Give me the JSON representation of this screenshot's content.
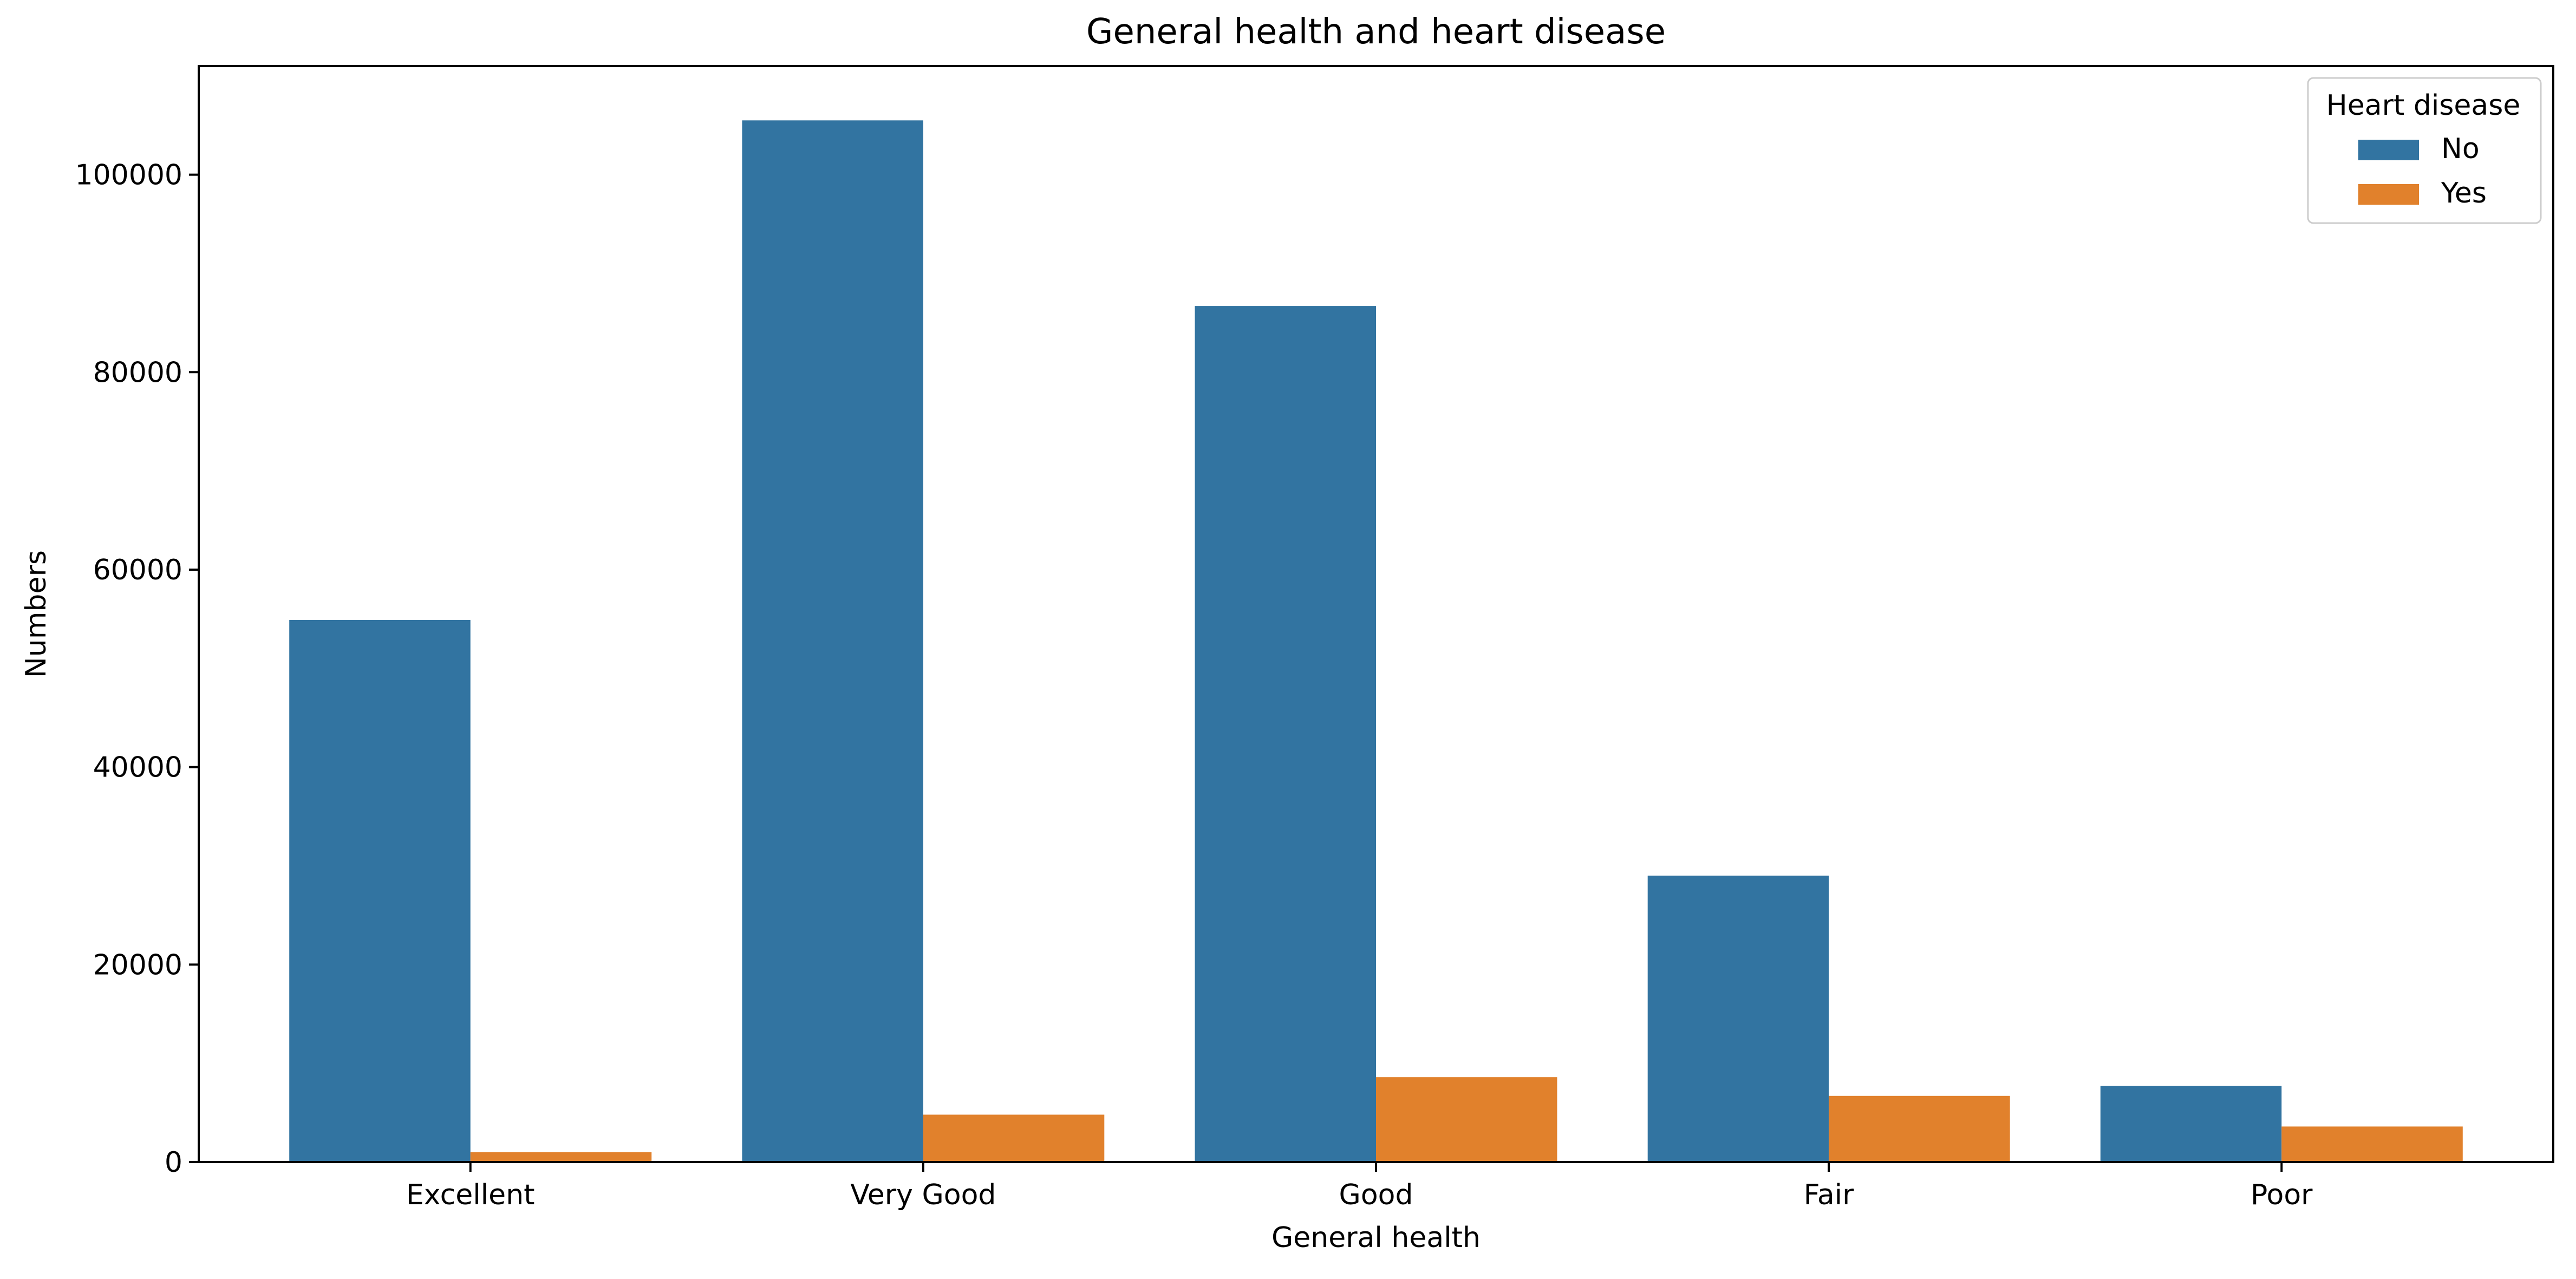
{
  "chart_data": {
    "type": "bar",
    "title": "General health and heart disease",
    "xlabel": "General health",
    "ylabel": "Numbers",
    "categories": [
      "Excellent",
      "Very Good",
      "Good",
      "Fair",
      "Poor"
    ],
    "series": [
      {
        "name": "No",
        "color": "#3274a1",
        "values": [
          54900,
          105500,
          86700,
          29000,
          7700
        ]
      },
      {
        "name": "Yes",
        "color": "#e1812c",
        "values": [
          1000,
          4800,
          8600,
          6700,
          3600
        ]
      }
    ],
    "ylim": [
      0,
      111000
    ],
    "yticks": [
      0,
      20000,
      40000,
      60000,
      80000,
      100000
    ],
    "grid": false,
    "legend": {
      "title": "Heart disease",
      "placement": "top-right"
    }
  }
}
